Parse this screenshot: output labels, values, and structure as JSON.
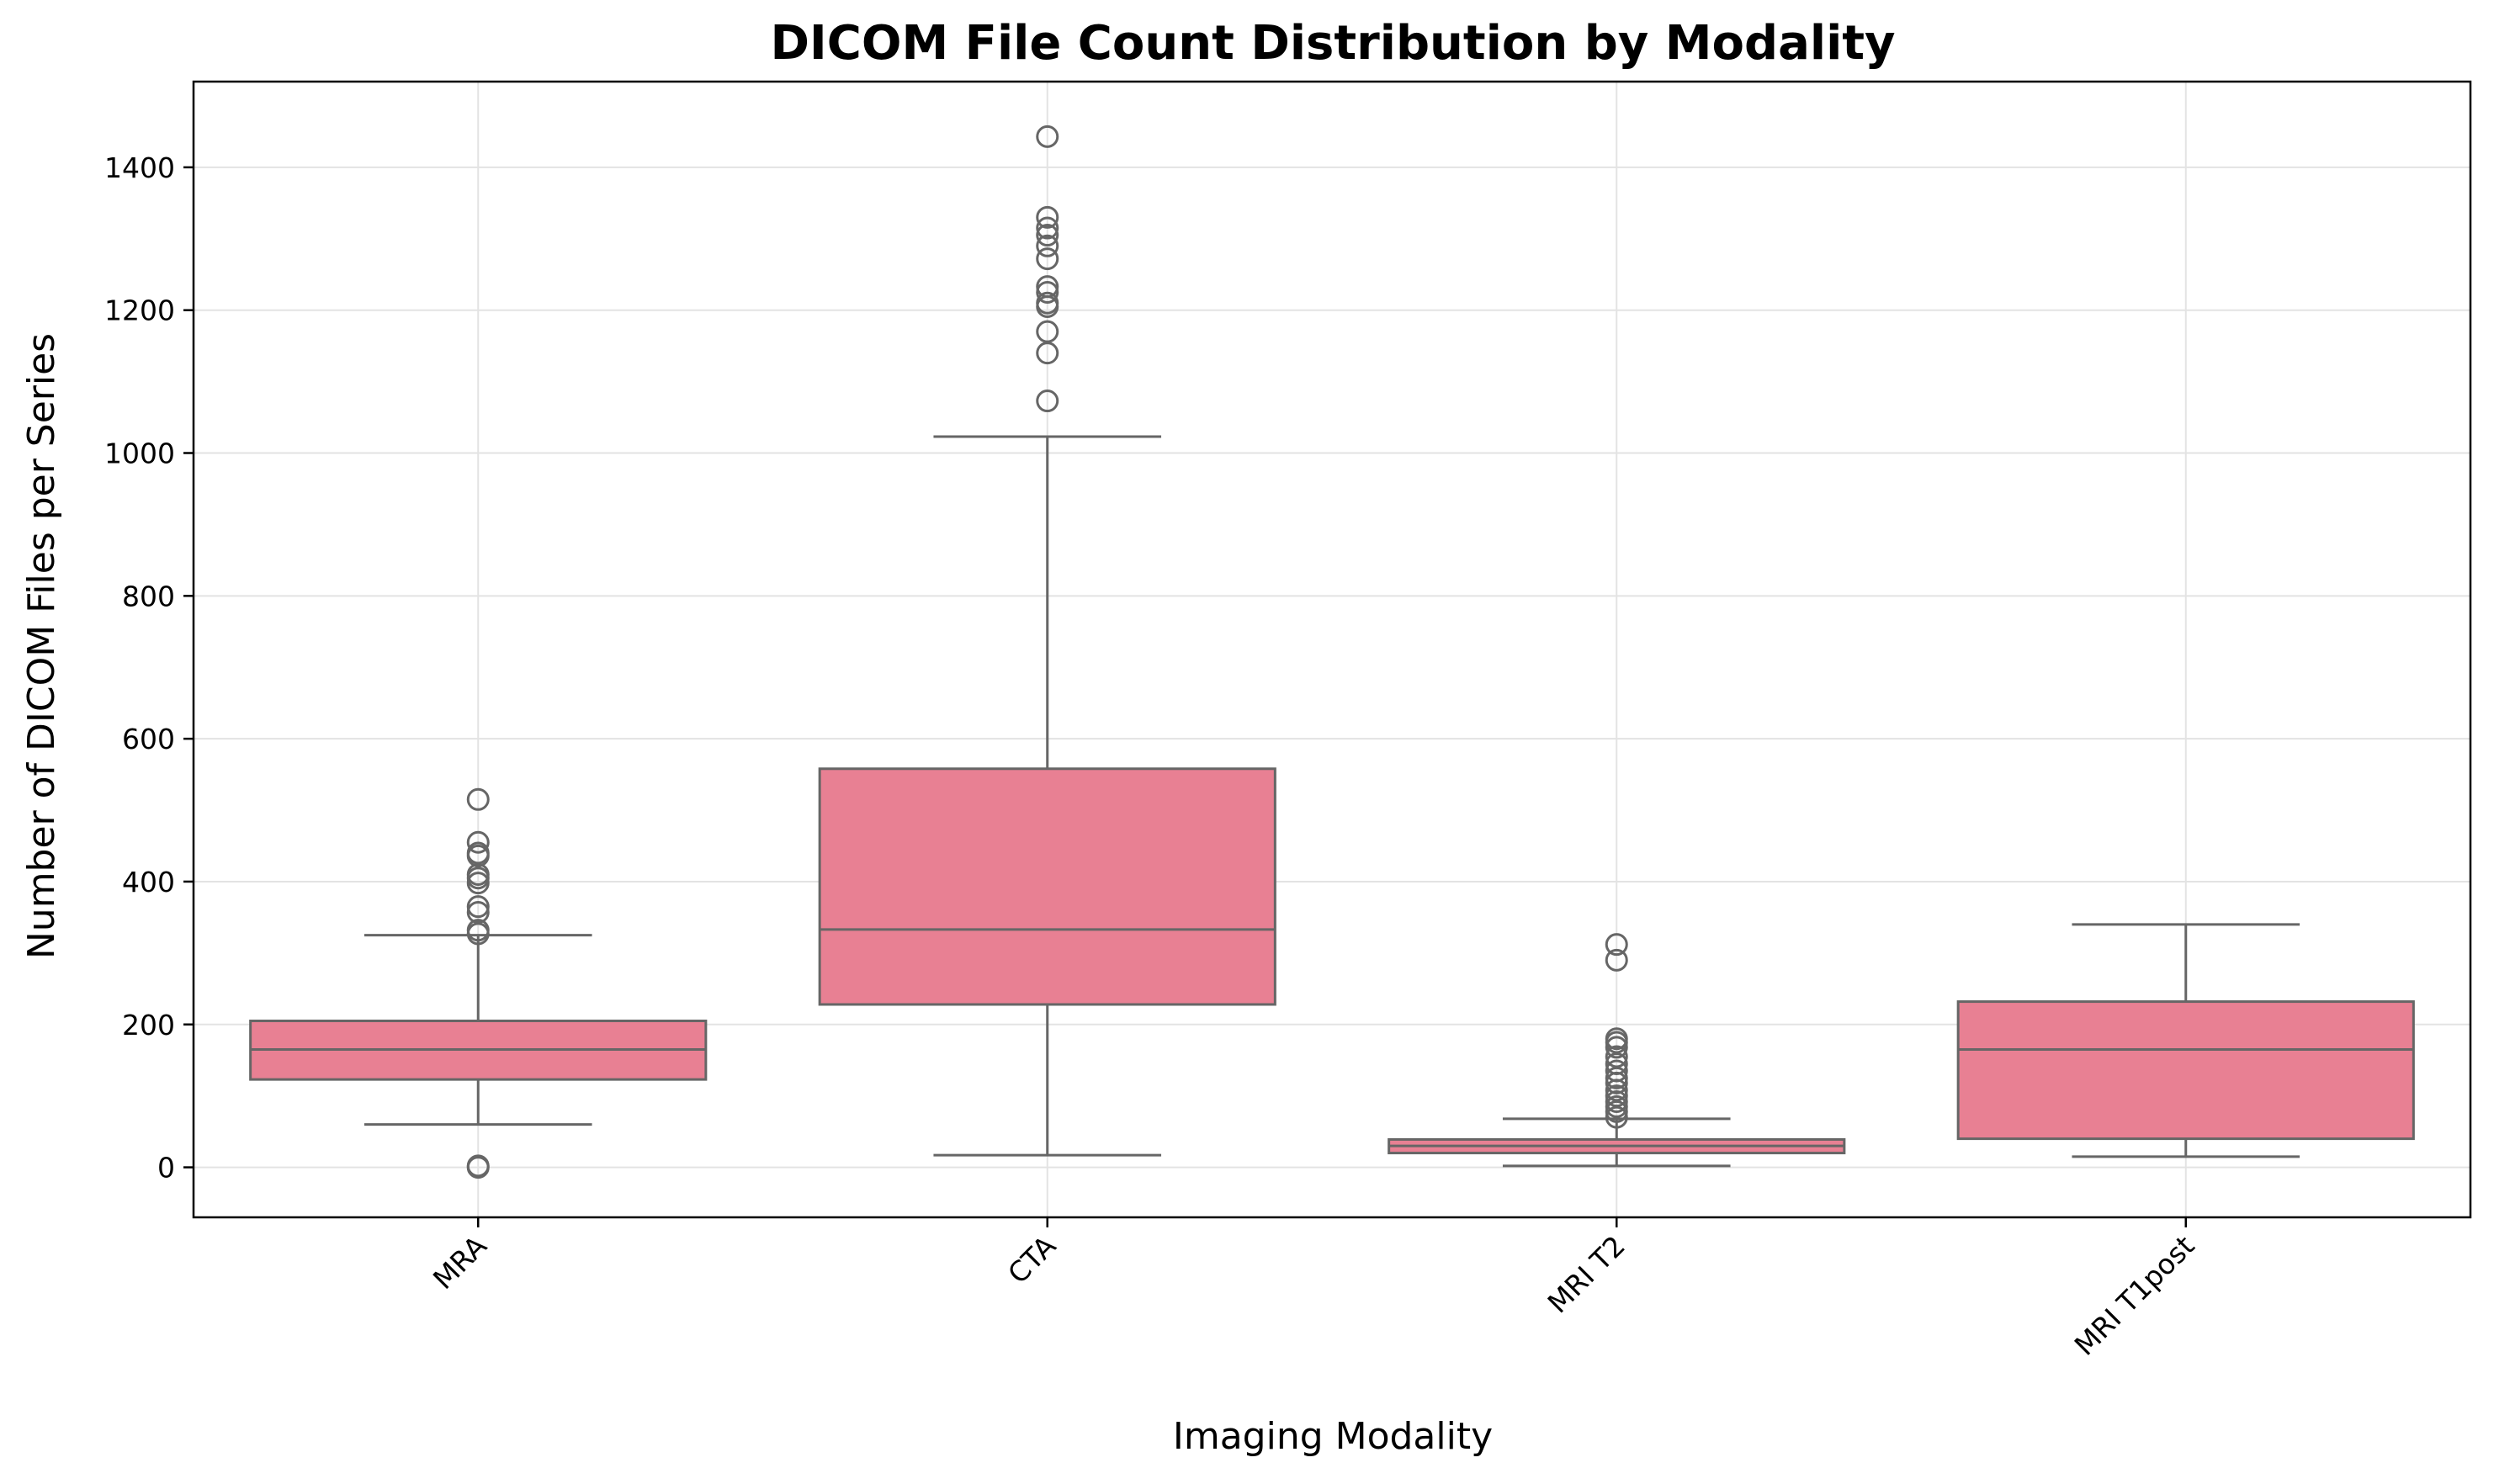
{
  "chart_data": {
    "type": "box",
    "title": "DICOM File Count Distribution by Modality",
    "xlabel": "Imaging Modality",
    "ylabel": "Number of DICOM Files per Series",
    "ylim": [
      -70,
      1520
    ],
    "yticks": [
      0,
      200,
      400,
      600,
      800,
      1000,
      1200,
      1400
    ],
    "grid": true,
    "legend": "none",
    "colors": {
      "box_fill": "#e88093",
      "line": "#666666",
      "grid": "#e3e3e3"
    },
    "categories": [
      "MRA",
      "CTA",
      "MRI T2",
      "MRI T1post"
    ],
    "boxes": [
      {
        "category": "MRA",
        "whisker_low": 60,
        "q1": 123,
        "median": 165,
        "q3": 205,
        "whisker_high": 325,
        "outliers": [
          0,
          2,
          327,
          332,
          357,
          365,
          398,
          405,
          410,
          436,
          440,
          455,
          515
        ]
      },
      {
        "category": "CTA",
        "whisker_low": 17,
        "q1": 228,
        "median": 333,
        "q3": 558,
        "whisker_high": 1023,
        "outliers": [
          1073,
          1140,
          1170,
          1205,
          1210,
          1225,
          1233,
          1272,
          1290,
          1305,
          1315,
          1330,
          1443
        ]
      },
      {
        "category": "MRI T2",
        "whisker_low": 2,
        "q1": 20,
        "median": 30,
        "q3": 39,
        "whisker_high": 68,
        "outliers": [
          70,
          78,
          85,
          92,
          100,
          108,
          118,
          125,
          135,
          145,
          155,
          168,
          175,
          180,
          290,
          312
        ]
      },
      {
        "category": "MRI T1post",
        "whisker_low": 15,
        "q1": 40,
        "median": 165,
        "q3": 232,
        "whisker_high": 340,
        "outliers": []
      }
    ]
  }
}
